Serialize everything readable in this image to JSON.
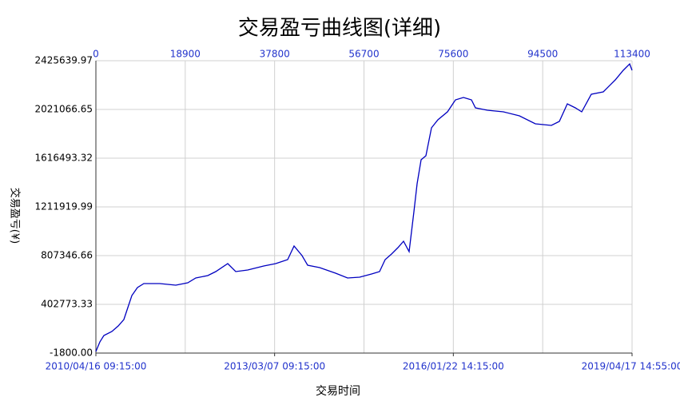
{
  "chart_data": {
    "type": "line",
    "title": "交易盈亏曲线图(详细)",
    "x_label": "交易时间",
    "y_label": "交易盈亏(¥)",
    "xlim": [
      0,
      113400
    ],
    "xticks": [
      0,
      18900,
      37800,
      56700,
      75600,
      94500,
      113400
    ],
    "x_bottom_ticks": [
      {
        "value": 0,
        "label": "2010/04/16 09:15:00"
      },
      {
        "value": 37800,
        "label": "2013/03/07 09:15:00"
      },
      {
        "value": 75600,
        "label": "2016/01/22 14:15:00"
      },
      {
        "value": 113400,
        "label": "2019/04/17 14:55:00"
      }
    ],
    "ylim": [
      -1800,
      2425639.97
    ],
    "yticks": [
      {
        "value": -1800,
        "label": "-1800.00"
      },
      402773.33,
      807346.66,
      1211919.99,
      1616493.32,
      2021066.65,
      2425639.97
    ],
    "grid": true,
    "series": [
      {
        "color": "#0000c0",
        "x": [
          0,
          845,
          1690,
          3380,
          4732,
          5915,
          6760,
          7605,
          8788,
          10140,
          13520,
          16900,
          19435,
          21125,
          23660,
          25350,
          27885,
          29575,
          32110,
          35490,
          38025,
          40560,
          41912,
          43602,
          44785,
          47320,
          50700,
          53235,
          55770,
          58305,
          59995,
          61178,
          62530,
          63882,
          65065,
          66248,
          67262,
          67938,
          68783,
          69797,
          70980,
          72332,
          74360,
          76050,
          77740,
          79430,
          80275,
          82810,
          86190,
          89570,
          92950,
          96330,
          98020,
          99710,
          101400,
          102752,
          104780,
          107315,
          109850,
          111540,
          112892,
          113400
        ],
        "values": [
          11464,
          91048,
          144104,
          177264,
          223688,
          276744,
          376224,
          475704,
          542024,
          575184,
          575184,
          561920,
          581816,
          621608,
          641504,
          674664,
          740984,
          674664,
          687928,
          721088,
          740984,
          774144,
          886888,
          807304,
          727720,
          707824,
          661400,
          621608,
          628240,
          654768,
          674664,
          774144,
          820568,
          873624,
          926680,
          840464,
          1172064,
          1404184,
          1603144,
          1636304,
          1868424,
          1934744,
          2001064,
          2100544,
          2120440,
          2100544,
          2034224,
          2014328,
          2001064,
          1967904,
          1901584,
          1888320,
          1921480,
          2067384,
          2034224,
          2001064,
          2146968,
          2166864,
          2266344,
          2345928,
          2398984,
          2345928
        ]
      }
    ]
  }
}
